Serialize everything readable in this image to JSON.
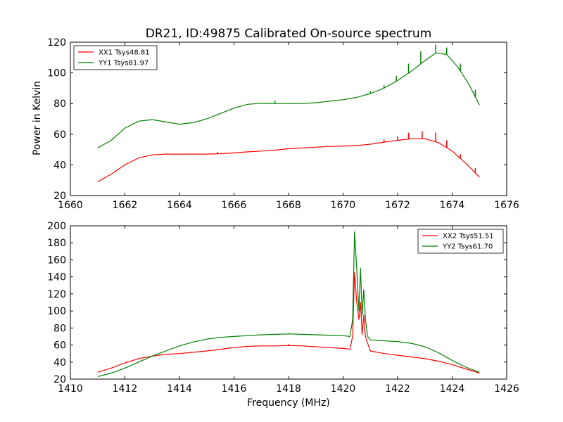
{
  "figure": {
    "title": "DR21, ID:49875 Calibrated On-source spectrum",
    "ylabel": "Power in Kelvin",
    "xlabel": "Frequency (MHz)"
  },
  "chart_data": [
    {
      "type": "line",
      "title": "DR21, ID:49875 Calibrated On-source spectrum",
      "xlabel": "",
      "ylabel": "Power in Kelvin",
      "xlim": [
        1660,
        1676
      ],
      "ylim": [
        20,
        120
      ],
      "xticks": [
        1660,
        1662,
        1664,
        1666,
        1668,
        1670,
        1672,
        1674,
        1676
      ],
      "yticks": [
        20,
        40,
        60,
        80,
        100,
        120
      ],
      "grid": false,
      "legend": "top-left",
      "series": [
        {
          "name": "XX1 Tsys48.81",
          "color": "#ff0000",
          "x": [
            1661.0,
            1661.5,
            1662.0,
            1662.5,
            1663.0,
            1663.5,
            1664.0,
            1664.5,
            1665.0,
            1665.5,
            1666.0,
            1666.5,
            1667.0,
            1667.5,
            1668.0,
            1668.5,
            1669.0,
            1669.5,
            1670.0,
            1670.5,
            1671.0,
            1671.5,
            1672.0,
            1672.5,
            1673.0,
            1673.5,
            1674.0,
            1674.5,
            1675.0
          ],
          "y": [
            29.0,
            34.0,
            40.0,
            44.5,
            46.5,
            47.0,
            47.0,
            47.0,
            47.0,
            47.3,
            47.8,
            48.5,
            49.0,
            49.6,
            50.5,
            51.0,
            51.5,
            52.0,
            52.3,
            52.6,
            53.5,
            54.8,
            56.0,
            57.0,
            57.0,
            54.5,
            49.0,
            41.0,
            32.0
          ],
          "spikes": [
            [
              1665.4,
              48.5
            ],
            [
              1671.5,
              56.5
            ],
            [
              1672.0,
              58.5
            ],
            [
              1672.4,
              61.0
            ],
            [
              1672.9,
              62.0
            ],
            [
              1673.4,
              61.0
            ],
            [
              1673.8,
              56.0
            ],
            [
              1674.3,
              47.0
            ],
            [
              1674.85,
              38.0
            ]
          ]
        },
        {
          "name": "YY1 Tsys81.97",
          "color": "#008000",
          "x": [
            1661.0,
            1661.5,
            1662.0,
            1662.5,
            1663.0,
            1663.5,
            1664.0,
            1664.5,
            1665.0,
            1665.5,
            1666.0,
            1666.5,
            1667.0,
            1667.5,
            1668.0,
            1668.5,
            1669.0,
            1669.5,
            1670.0,
            1670.5,
            1671.0,
            1671.5,
            1672.0,
            1672.5,
            1673.0,
            1673.4,
            1673.8,
            1674.2,
            1674.6,
            1675.0
          ],
          "y": [
            51.0,
            56.0,
            64.0,
            68.5,
            69.5,
            68.0,
            66.5,
            67.5,
            70.0,
            73.5,
            77.0,
            79.5,
            80.2,
            80.0,
            80.0,
            80.0,
            80.5,
            81.5,
            82.5,
            84.0,
            86.5,
            90.0,
            95.0,
            101.0,
            108.0,
            113.0,
            112.0,
            104.0,
            93.0,
            79.0
          ],
          "spikes": [
            [
              1665.4,
              73.0
            ],
            [
              1667.5,
              82.0
            ],
            [
              1671.0,
              88.0
            ],
            [
              1671.5,
              92.0
            ],
            [
              1671.95,
              98.0
            ],
            [
              1672.4,
              106.0
            ],
            [
              1672.85,
              114.0
            ],
            [
              1673.4,
              118.5
            ],
            [
              1673.8,
              116.5
            ],
            [
              1674.3,
              106.0
            ],
            [
              1674.85,
              89.0
            ]
          ]
        }
      ]
    },
    {
      "type": "line",
      "title": "",
      "xlabel": "Frequency (MHz)",
      "ylabel": "",
      "xlim": [
        1410,
        1426
      ],
      "ylim": [
        20,
        200
      ],
      "xticks": [
        1410,
        1412,
        1414,
        1416,
        1418,
        1420,
        1422,
        1424,
        1426
      ],
      "yticks": [
        20,
        40,
        60,
        80,
        100,
        120,
        140,
        160,
        180,
        200
      ],
      "grid": false,
      "legend": "top-right",
      "series": [
        {
          "name": "XX2 Tsys51.51",
          "color": "#ff0000",
          "x": [
            1411.0,
            1411.5,
            1412.0,
            1412.5,
            1413.0,
            1413.5,
            1414.0,
            1414.5,
            1415.0,
            1415.5,
            1416.0,
            1416.5,
            1417.0,
            1417.5,
            1418.0,
            1418.5,
            1419.0,
            1419.5,
            1420.0,
            1420.25,
            1420.35,
            1420.42,
            1420.5,
            1420.58,
            1420.64,
            1420.7,
            1420.76,
            1420.82,
            1420.9,
            1421.0,
            1421.5,
            1422.0,
            1422.5,
            1423.0,
            1423.5,
            1424.0,
            1424.5,
            1425.0
          ],
          "y": [
            28.0,
            33.0,
            39.0,
            44.0,
            47.0,
            49.0,
            50.0,
            51.5,
            53.0,
            55.0,
            57.0,
            58.5,
            59.0,
            59.0,
            59.5,
            59.0,
            58.0,
            57.0,
            56.0,
            55.0,
            70.0,
            145.0,
            110.0,
            90.0,
            110.0,
            72.0,
            95.0,
            70.0,
            62.0,
            53.0,
            50.0,
            48.0,
            46.0,
            44.0,
            41.0,
            37.0,
            32.0,
            27.0
          ],
          "spikes": [
            [
              1418.0,
              61.0
            ]
          ]
        },
        {
          "name": "YY2 Tsys61.70",
          "color": "#008000",
          "x": [
            1411.0,
            1411.5,
            1412.0,
            1412.5,
            1413.0,
            1413.5,
            1414.0,
            1414.5,
            1415.0,
            1415.5,
            1416.0,
            1416.5,
            1417.0,
            1417.5,
            1418.0,
            1418.5,
            1419.0,
            1419.5,
            1420.0,
            1420.25,
            1420.35,
            1420.42,
            1420.5,
            1420.58,
            1420.64,
            1420.7,
            1420.76,
            1420.82,
            1420.9,
            1421.0,
            1421.5,
            1422.0,
            1422.5,
            1423.0,
            1423.5,
            1424.0,
            1424.5,
            1425.0
          ],
          "y": [
            23.0,
            27.0,
            33.0,
            40.0,
            47.0,
            53.0,
            59.0,
            63.5,
            67.0,
            69.0,
            70.0,
            71.0,
            72.0,
            72.5,
            73.0,
            72.5,
            72.0,
            71.5,
            71.0,
            70.0,
            90.0,
            193.0,
            150.0,
            100.0,
            150.0,
            95.0,
            125.0,
            90.0,
            70.0,
            66.0,
            65.0,
            64.0,
            62.0,
            58.0,
            51.0,
            42.0,
            34.0,
            28.0
          ],
          "spikes": [
            [
              1418.0,
              74.0
            ]
          ]
        }
      ]
    }
  ]
}
